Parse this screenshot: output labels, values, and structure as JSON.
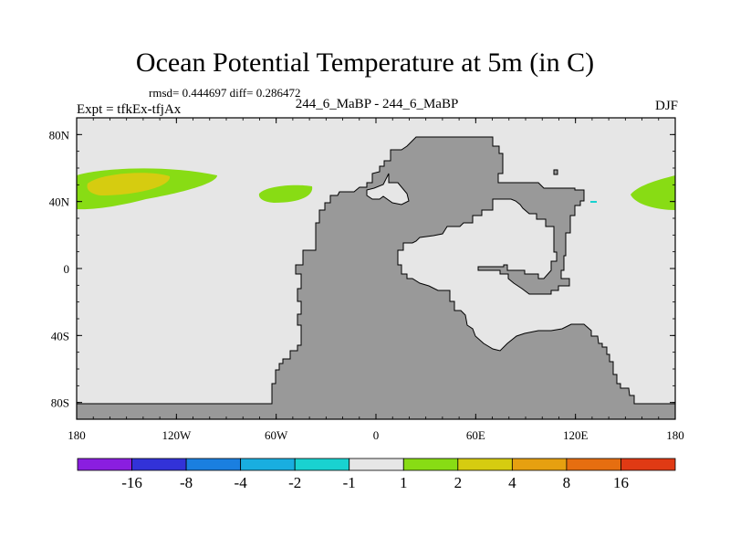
{
  "title": "Ocean Potential Temperature at 5m (in C)",
  "stats": "rmsd= 0.444697 diff= 0.286472",
  "subtitle": "244_6_MaBP - 244_6_MaBP",
  "experiment": "Expt = tfkEx-tfjAx",
  "season": "DJF",
  "map": {
    "background_color": "#e6e6e6",
    "land_color": "#999999",
    "lon_ticks": [
      "180",
      "120W",
      "60W",
      "0",
      "60E",
      "120E",
      "180"
    ],
    "lat_ticks": [
      "80N",
      "40N",
      "0",
      "40S",
      "80S"
    ]
  },
  "colorbar": {
    "colors": [
      "#8a1ee0",
      "#3232d8",
      "#1a7fe0",
      "#19aee0",
      "#19d2d0",
      "#e6e6e6",
      "#88dc14",
      "#d6cc10",
      "#e6a010",
      "#e66e10",
      "#e03a14"
    ],
    "labels": [
      "-16",
      "-8",
      "-4",
      "-2",
      "-1",
      "1",
      "2",
      "4",
      "8",
      "16"
    ]
  }
}
